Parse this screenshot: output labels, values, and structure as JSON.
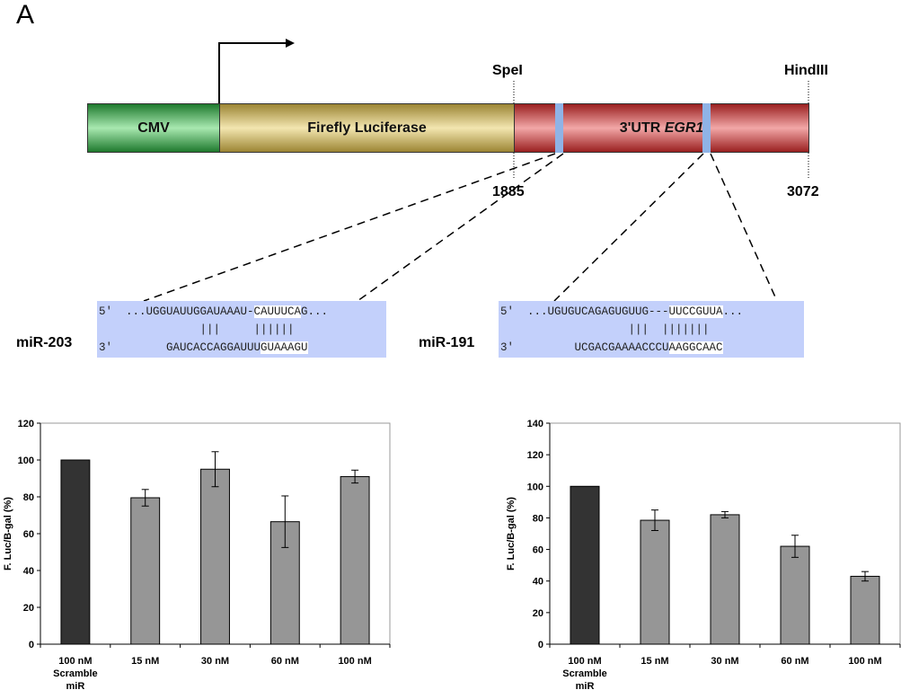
{
  "panel_label": "A",
  "construct": {
    "segments": [
      {
        "label": "CMV",
        "color": "#2e9e3e"
      },
      {
        "label": "Firefly Luciferase",
        "color": "#c9b25a"
      },
      {
        "label": "3'UTR ",
        "label_italic": "EGR1",
        "color": "#c84b4b"
      }
    ],
    "site_color": "#8fb3e6",
    "sites": {
      "left": "SpeI",
      "right": "HindIII"
    },
    "positions": {
      "start": "1885",
      "end": "3072"
    }
  },
  "alignments": [
    {
      "mir": "miR-203",
      "top_prefix": "5'  ...UGGUAUUGGAUAAAU-",
      "top_hl": "CAUUUCA",
      "top_suffix": "G...",
      "pairs": "               |||     ||||||",
      "bot_prefix": "3'        GAUCACCAGGAUUU",
      "bot_hl": "GUAAAGU"
    },
    {
      "mir": "miR-191",
      "top_prefix": "5'  ...UGUGUCAGAGUGUUG---",
      "top_hl": "UUCCGUUA",
      "top_suffix": "...",
      "pairs": "                   |||  |||||||",
      "bot_prefix": "3'         UCGACGAAAACCCU",
      "bot_hl": "AAGGCAAC"
    }
  ],
  "chart_data": [
    {
      "type": "bar",
      "title": "",
      "ylabel": "F. Luc/B-gal (%)",
      "xlabel": "",
      "ylim": [
        0,
        120
      ],
      "yticks": [
        0,
        20,
        40,
        60,
        80,
        100,
        120
      ],
      "categories": [
        [
          "100 nM",
          "Scramble",
          "miR"
        ],
        [
          "15 nM"
        ],
        [
          "30 nM"
        ],
        [
          "60 nM"
        ],
        [
          "100 nM"
        ]
      ],
      "values": [
        100,
        79.5,
        95,
        66.5,
        91
      ],
      "errors": [
        0,
        4.5,
        9.5,
        14,
        3.5
      ],
      "colors": [
        "#333333",
        "#969696",
        "#969696",
        "#969696",
        "#969696"
      ]
    },
    {
      "type": "bar",
      "title": "",
      "ylabel": "F. Luc/B-gal (%)",
      "xlabel": "",
      "ylim": [
        0,
        140
      ],
      "yticks": [
        0,
        20,
        40,
        60,
        80,
        100,
        120,
        140
      ],
      "categories": [
        [
          "100 nM",
          "Scramble",
          "miR"
        ],
        [
          "15 nM"
        ],
        [
          "30 nM"
        ],
        [
          "60 nM"
        ],
        [
          "100 nM"
        ]
      ],
      "values": [
        100,
        78.5,
        82,
        62,
        43
      ],
      "errors": [
        0,
        6.5,
        2,
        7,
        3
      ],
      "colors": [
        "#333333",
        "#969696",
        "#969696",
        "#969696",
        "#969696"
      ]
    }
  ]
}
